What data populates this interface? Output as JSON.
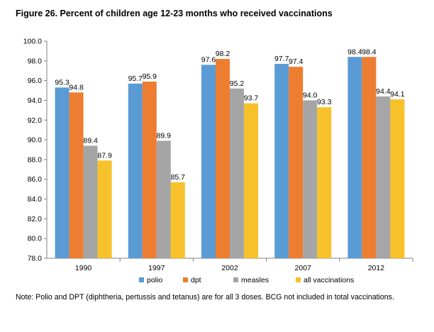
{
  "title": "Figure 26. Percent of children age 12-23 months who received vaccinations",
  "note": "Note: Polio and DPT (diphtheria, pertussis and tetanus) are for all 3 doses. BCG not included in total vaccinations.",
  "colors": {
    "polio": "#5b9bd5",
    "dpt": "#ed7d31",
    "measles": "#a5a5a5",
    "all vaccinations": "#f6c12a"
  },
  "chart_data": {
    "type": "bar",
    "title": "Figure 26. Percent of children age 12-23 months who received vaccinations",
    "xlabel": "",
    "ylabel": "",
    "categories": [
      "1990",
      "1997",
      "2002",
      "2007",
      "2012"
    ],
    "series": [
      {
        "name": "polio",
        "values": [
          95.3,
          95.7,
          97.6,
          97.7,
          98.4
        ]
      },
      {
        "name": "dpt",
        "values": [
          94.8,
          95.9,
          98.2,
          97.4,
          98.4
        ]
      },
      {
        "name": "measles",
        "values": [
          89.4,
          89.9,
          95.2,
          94.0,
          94.4
        ]
      },
      {
        "name": "all vaccinations",
        "values": [
          87.9,
          85.7,
          93.7,
          93.3,
          94.1
        ]
      }
    ],
    "value_labels": [
      [
        "95.3",
        "94.8",
        "89.4",
        "87.9"
      ],
      [
        "95.7",
        "95.9",
        "89.9",
        "85.7"
      ],
      [
        "97.6",
        "98.2",
        "95.2",
        "93.7"
      ],
      [
        "97.7",
        "97.4",
        "94.0",
        "93.3"
      ],
      [
        "98.4",
        "98.4",
        "94.4",
        "94.1"
      ]
    ],
    "ylim": [
      78.0,
      100.0
    ],
    "yticks": [
      78.0,
      80.0,
      82.0,
      84.0,
      86.0,
      88.0,
      90.0,
      92.0,
      94.0,
      96.0,
      98.0,
      100.0
    ],
    "ytick_labels": [
      "78.0",
      "80.0",
      "82.0",
      "84.0",
      "86.0",
      "88.0",
      "90.0",
      "92.0",
      "94.0",
      "96.0",
      "98.0",
      "100.0"
    ],
    "grid": false,
    "legend": "bottom"
  }
}
